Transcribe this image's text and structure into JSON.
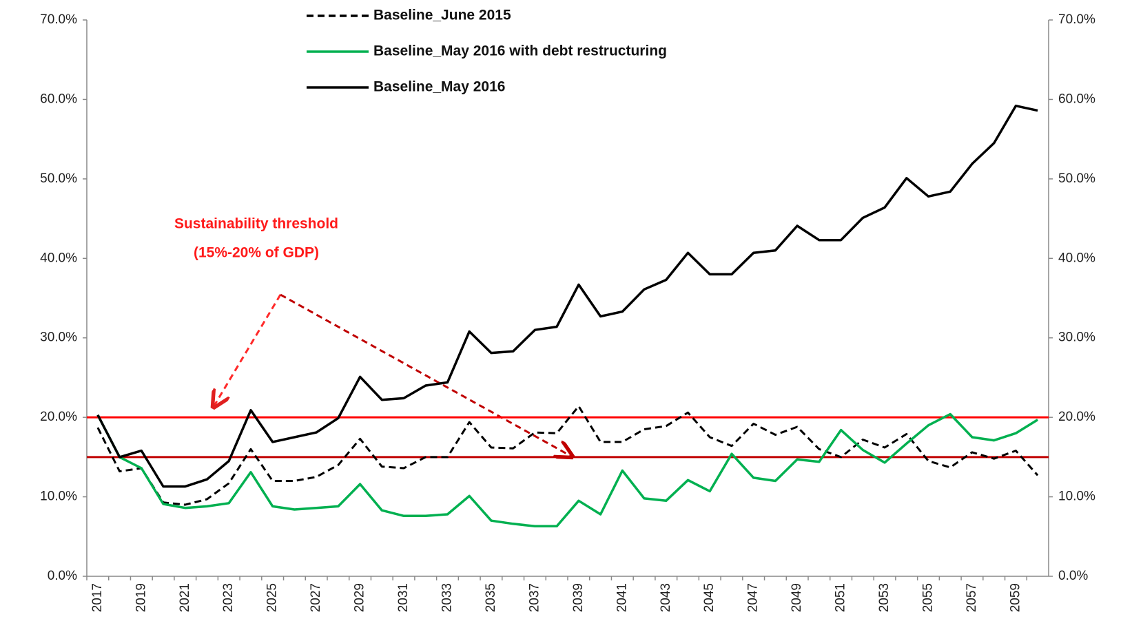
{
  "chart_data": {
    "type": "line",
    "categories": [
      "2017",
      null,
      "2019",
      null,
      "2021",
      null,
      "2023",
      null,
      "2025",
      null,
      "2027",
      null,
      "2029",
      null,
      "2031",
      null,
      "2033",
      null,
      "2035",
      null,
      "2037",
      null,
      "2039",
      null,
      "2041",
      null,
      "2043",
      null,
      "2045",
      null,
      "2047",
      null,
      "2049",
      null,
      "2051",
      null,
      "2053",
      null,
      "2055",
      null,
      "2057",
      null,
      "2059",
      null
    ],
    "series": [
      {
        "name": "Baseline_June 2015",
        "color": "#000000",
        "line_style": "dashed",
        "values": [
          18.7,
          13.2,
          13.6,
          9.3,
          9.0,
          9.7,
          11.7,
          16.0,
          12.0,
          12.0,
          12.5,
          14.0,
          17.3,
          13.8,
          13.6,
          15.0,
          15.0,
          19.4,
          16.2,
          16.1,
          18.1,
          18.0,
          21.4,
          16.9,
          16.9,
          18.5,
          18.9,
          20.6,
          17.5,
          16.4,
          19.2,
          17.8,
          18.8,
          16.0,
          15.0,
          17.2,
          16.2,
          17.9,
          14.5,
          13.7,
          15.6,
          14.8,
          15.8,
          12.7
        ]
      },
      {
        "name": "Baseline_May 2016 with debt restructuring",
        "color": "#00b050",
        "line_style": "solid",
        "values": [
          20.3,
          15.0,
          13.6,
          9.1,
          8.6,
          8.8,
          9.2,
          13.1,
          8.8,
          8.4,
          8.6,
          8.8,
          11.6,
          8.3,
          7.6,
          7.6,
          7.8,
          10.1,
          7.0,
          6.6,
          6.3,
          6.3,
          9.5,
          7.8,
          13.3,
          9.8,
          9.5,
          12.1,
          10.7,
          15.4,
          12.4,
          12.0,
          14.7,
          14.4,
          18.4,
          15.9,
          14.3,
          16.7,
          19.0,
          20.4,
          17.5,
          17.1,
          18.0,
          19.7
        ]
      },
      {
        "name": "Baseline_May 2016",
        "color": "#000000",
        "line_style": "solid",
        "values": [
          20.3,
          15.0,
          15.8,
          11.3,
          11.3,
          12.2,
          14.5,
          20.9,
          16.9,
          17.5,
          18.1,
          19.9,
          25.1,
          22.2,
          22.4,
          24.0,
          24.4,
          30.8,
          28.1,
          28.3,
          31.0,
          31.4,
          36.7,
          32.7,
          33.3,
          36.1,
          37.3,
          40.7,
          38.0,
          38.0,
          40.7,
          41.0,
          44.1,
          42.3,
          42.3,
          45.1,
          46.4,
          50.1,
          47.8,
          48.4,
          51.9,
          54.5,
          59.2,
          58.6
        ]
      }
    ],
    "thresholds": [
      {
        "value": 20,
        "color": "#ff0000"
      },
      {
        "value": 15,
        "color": "#c00000"
      }
    ],
    "annotations": [
      "Sustainability  threshold",
      "(15%-20% of GDP)"
    ],
    "ylim": [
      0,
      70
    ],
    "yticks": [
      {
        "value": 0,
        "label": "0.0%"
      },
      {
        "value": 10,
        "label": "10.0%"
      },
      {
        "value": 20,
        "label": "20.0%"
      },
      {
        "value": 30,
        "label": "30.0%"
      },
      {
        "value": 40,
        "label": "40.0%"
      },
      {
        "value": 50,
        "label": "50.0%"
      },
      {
        "value": 60,
        "label": "60.0%"
      },
      {
        "value": 70,
        "label": "70.0%"
      }
    ],
    "y2lim": [
      0,
      70
    ],
    "y2ticks": [
      {
        "value": 0,
        "label": "0.0%"
      },
      {
        "value": 10,
        "label": "10.0%"
      },
      {
        "value": 20,
        "label": "20.0%"
      },
      {
        "value": 30,
        "label": "30.0%"
      },
      {
        "value": 40,
        "label": "40.0%"
      },
      {
        "value": 50,
        "label": "50.0%"
      },
      {
        "value": 60,
        "label": "60.0%"
      },
      {
        "value": 70,
        "label": "70.0%"
      }
    ],
    "grid": false,
    "legend": "top"
  }
}
